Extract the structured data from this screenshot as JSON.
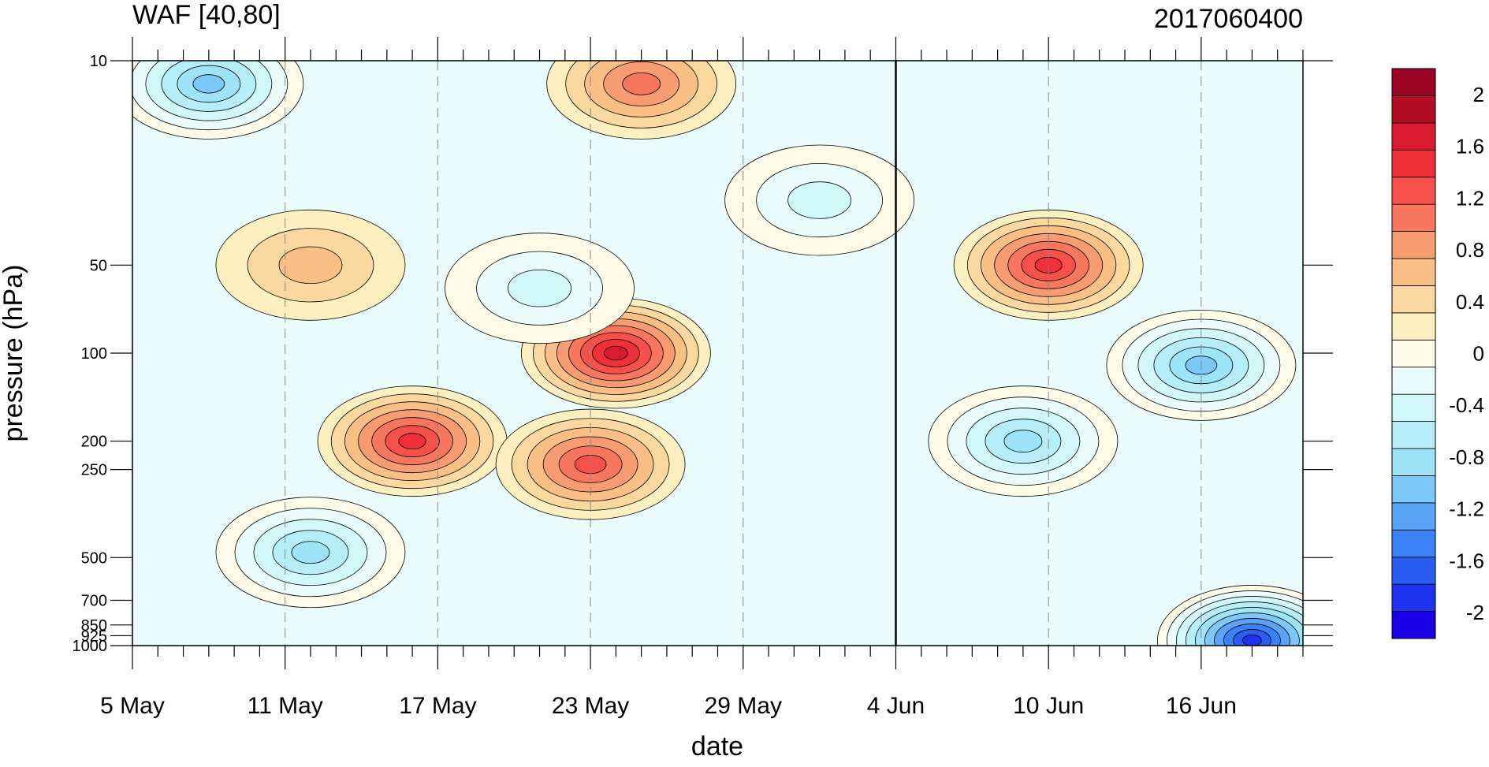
{
  "chart_data": {
    "type": "heatmap",
    "title_left": "WAF [40,80]",
    "title_right": "2017060400",
    "xlabel": "date",
    "ylabel": "pressure (hPa)",
    "x_ticks": [
      "5 May",
      "11 May",
      "17 May",
      "23 May",
      "29 May",
      "4 Jun",
      "10 Jun",
      "16 Jun"
    ],
    "x_range": [
      "2017-05-05",
      "2017-06-20"
    ],
    "y_scale": "log",
    "y_reversed": true,
    "y_ticks": [
      10,
      50,
      100,
      200,
      250,
      500,
      700,
      850,
      925,
      1000
    ],
    "y_tick_labels": [
      "10",
      "50",
      "100",
      "200",
      "250",
      "500",
      "700",
      "850",
      "925",
      "1000"
    ],
    "y_range": [
      1000,
      10
    ],
    "vertical_marker_date": "2017-06-04",
    "colorbar": {
      "levels": [
        -2.2,
        -2,
        -1.8,
        -1.6,
        -1.4,
        -1.2,
        -1,
        -0.8,
        -0.6,
        -0.4,
        -0.2,
        0,
        0.2,
        0.4,
        0.6,
        0.8,
        1,
        1.2,
        1.4,
        1.6,
        1.8,
        2,
        2.2
      ],
      "tick_values": [
        -2,
        -1.6,
        -1.2,
        -0.8,
        -0.4,
        0,
        0.4,
        0.8,
        1.2,
        1.6,
        2
      ],
      "tick_labels": [
        "-2",
        "-1.6",
        "-1.2",
        "-0.8",
        "-0.4",
        "0",
        "0.4",
        "0.8",
        "1.2",
        "1.6",
        "2"
      ],
      "colors": [
        "#1a00e6",
        "#1f33ee",
        "#2a5ef2",
        "#3a82f5",
        "#5aa3f7",
        "#7cc8f7",
        "#9ee4f8",
        "#b5eef8",
        "#d2f7f9",
        "#eafcfb",
        "#fdfbe8",
        "#fdf0c0",
        "#fbd89f",
        "#f9bf86",
        "#f79c72",
        "#f6775d",
        "#f5504a",
        "#ef2f3a",
        "#d91b30",
        "#b30d26",
        "#9b0424"
      ]
    },
    "features": [
      {
        "date": "2017-05-08",
        "pressure": 12,
        "value": -1.2
      },
      {
        "date": "2017-05-12",
        "pressure": 50,
        "value": 0.6
      },
      {
        "date": "2017-05-16",
        "pressure": 200,
        "value": 1.4
      },
      {
        "date": "2017-05-12",
        "pressure": 480,
        "value": -1.0
      },
      {
        "date": "2017-05-24",
        "pressure": 100,
        "value": 1.6
      },
      {
        "date": "2017-05-23",
        "pressure": 240,
        "value": 1.2
      },
      {
        "date": "2017-05-25",
        "pressure": 12,
        "value": 1.0
      },
      {
        "date": "2017-06-10",
        "pressure": 50,
        "value": 1.4
      },
      {
        "date": "2017-06-16",
        "pressure": 110,
        "value": -1.2
      },
      {
        "date": "2017-06-18",
        "pressure": 960,
        "value": -2.0
      },
      {
        "date": "2017-06-09",
        "pressure": 200,
        "value": -1.0
      },
      {
        "date": "2017-05-21",
        "pressure": 60,
        "value": -0.6
      },
      {
        "date": "2017-06-01",
        "pressure": 30,
        "value": -0.6
      }
    ]
  }
}
